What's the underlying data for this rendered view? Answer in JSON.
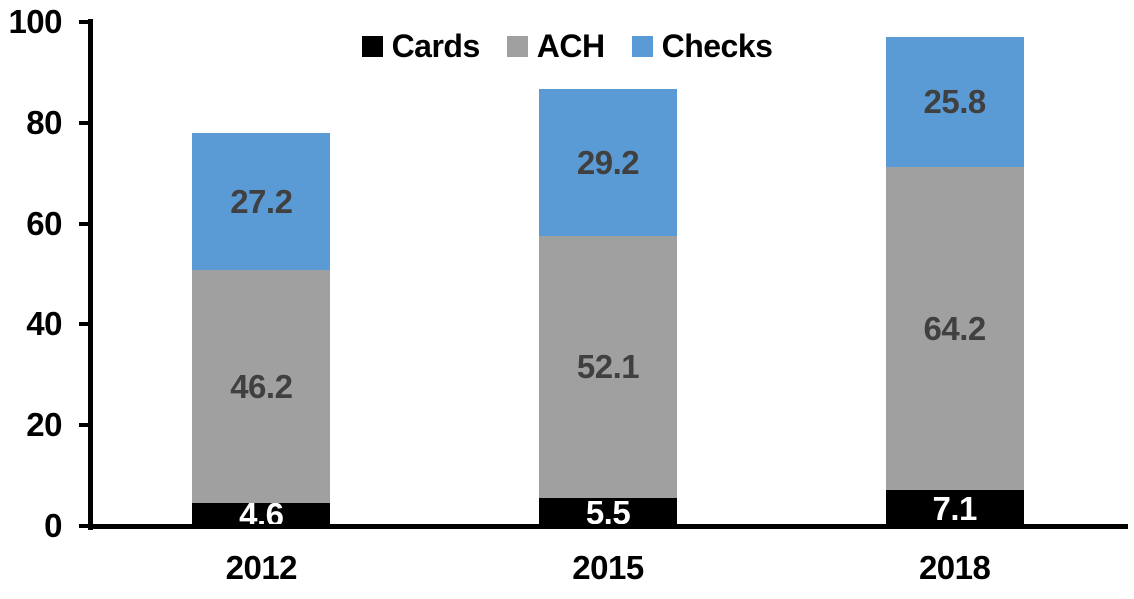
{
  "chart_data": {
    "type": "bar",
    "subtype": "stacked-vertical",
    "title": "",
    "xlabel": "",
    "ylabel": "",
    "categories": [
      "2012",
      "2015",
      "2018"
    ],
    "series": [
      {
        "name": "Cards",
        "color": "#000000",
        "label_color": "#ffffff",
        "values": [
          4.6,
          5.5,
          7.1
        ]
      },
      {
        "name": "ACH",
        "color": "#A0A0A0",
        "label_color": "#404040",
        "values": [
          46.2,
          52.1,
          64.2
        ]
      },
      {
        "name": "Checks",
        "color": "#5B9BD5",
        "label_color": "#404040",
        "values": [
          27.2,
          29.2,
          25.8
        ]
      }
    ],
    "totals": [
      78.0,
      86.8,
      97.1
    ],
    "ylim": [
      0,
      100
    ],
    "yticks": [
      "0",
      "20",
      "40",
      "60",
      "80",
      "100"
    ],
    "grid": false,
    "legend_position": "top-center",
    "legend_entries": [
      "Cards",
      "ACH",
      "Checks"
    ],
    "axis_color": "#000000",
    "background_color": "#ffffff"
  }
}
